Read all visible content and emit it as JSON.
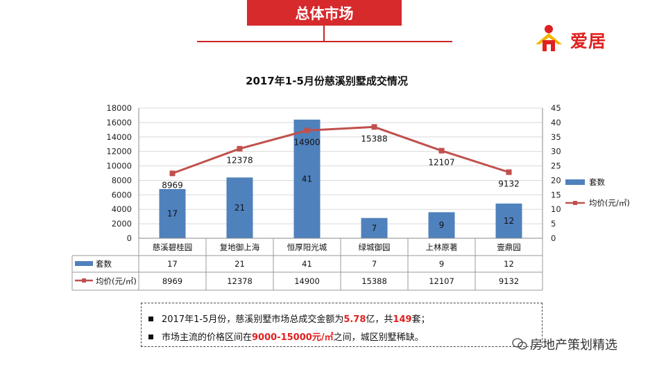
{
  "header": {
    "title": "总体市场"
  },
  "logo": {
    "text": "爱居"
  },
  "chart_data": {
    "type": "bar",
    "title": "2017年1-5月份慈溪别墅成交情况",
    "categories": [
      "慈溪碧桂园",
      "复地御上海",
      "恒厚阳光城",
      "绿城御园",
      "上林原著",
      "壹鼎园"
    ],
    "series": [
      {
        "name": "套数",
        "type": "bar",
        "axis": "right",
        "values": [
          17,
          21,
          41,
          7,
          9,
          12
        ],
        "color": "#4f81bd"
      },
      {
        "name": "均价(元/㎡)",
        "type": "line",
        "axis": "left",
        "values": [
          8969,
          12378,
          14900,
          15388,
          12107,
          9132
        ],
        "color": "#c0504d"
      }
    ],
    "left_axis": {
      "min": 0,
      "max": 18000,
      "step": 2000,
      "ticks": [
        "0",
        "2000",
        "4000",
        "6000",
        "8000",
        "10000",
        "12000",
        "14000",
        "16000",
        "18000"
      ]
    },
    "right_axis": {
      "min": 0,
      "max": 45,
      "step": 5,
      "ticks": [
        "0",
        "5",
        "10",
        "15",
        "20",
        "25",
        "30",
        "35",
        "40",
        "45"
      ]
    },
    "grid": true,
    "legend_position": "right",
    "data_table": true
  },
  "summary": {
    "line1": {
      "a": "2017年1-5月份，慈溪别墅市场总成交金额为",
      "b": "5.78",
      "c": "亿，共",
      "d": "149",
      "e": "套；"
    },
    "line2": {
      "a": "市场主流的价格区间在",
      "b": "9000-15000元/㎡",
      "c": "之间，城区别墅稀缺。"
    }
  },
  "watermark": {
    "text": "房地产策划精选"
  }
}
